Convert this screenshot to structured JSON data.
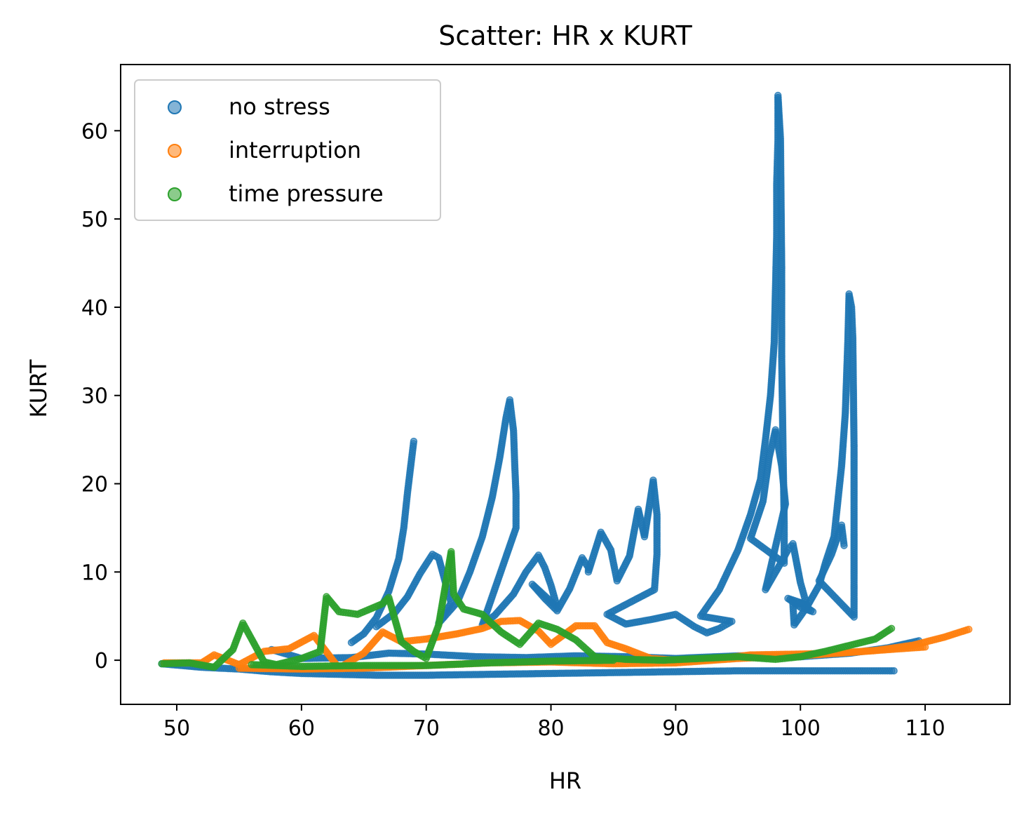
{
  "chart_data": {
    "type": "scatter",
    "title": "Scatter: HR x KURT",
    "xlabel": "HR",
    "ylabel": "KURT",
    "xlim": [
      45.5,
      116.8
    ],
    "ylim": [
      -5,
      67.5
    ],
    "xticks": [
      50,
      60,
      70,
      80,
      90,
      100,
      110
    ],
    "yticks": [
      0,
      10,
      20,
      30,
      40,
      50,
      60
    ],
    "grid": false,
    "legend_position": "upper-left",
    "series": [
      {
        "name": "no stress",
        "color": "#1f77b4",
        "points": [
          [
            48.8,
            -0.4
          ],
          [
            52,
            -0.8
          ],
          [
            55,
            -1.0
          ],
          [
            57.5,
            -1.3
          ],
          [
            60,
            -1.5
          ],
          [
            63,
            -1.6
          ],
          [
            66,
            -1.7
          ],
          [
            70,
            -1.7
          ],
          [
            75,
            -1.6
          ],
          [
            80,
            -1.5
          ],
          [
            85,
            -1.4
          ],
          [
            90,
            -1.3
          ],
          [
            95,
            -1.2
          ],
          [
            100,
            -1.2
          ],
          [
            105,
            -1.2
          ],
          [
            107.5,
            -1.2
          ],
          [
            57.6,
            1.2
          ],
          [
            60,
            0.2
          ],
          [
            64,
            0.3
          ],
          [
            67,
            0.8
          ],
          [
            70,
            0.7
          ],
          [
            74,
            0.4
          ],
          [
            78,
            0.3
          ],
          [
            82,
            0.5
          ],
          [
            86,
            0.4
          ],
          [
            90,
            0.2
          ],
          [
            95,
            0.5
          ],
          [
            100,
            0.4
          ],
          [
            104,
            0.8
          ],
          [
            107,
            1.4
          ],
          [
            109.5,
            2.2
          ],
          [
            64,
            2.0
          ],
          [
            65,
            3.0
          ],
          [
            66,
            4.8
          ],
          [
            67,
            7.8
          ],
          [
            67.8,
            11.5
          ],
          [
            68.2,
            15
          ],
          [
            68.5,
            19
          ],
          [
            68.8,
            22.5
          ],
          [
            69,
            24.8
          ],
          [
            66,
            3.8
          ],
          [
            67.5,
            5.4
          ],
          [
            68.5,
            7.2
          ],
          [
            69.5,
            9.8
          ],
          [
            70.5,
            12.0
          ],
          [
            71,
            11.6
          ],
          [
            71.5,
            9.0
          ],
          [
            72,
            6.5
          ],
          [
            71,
            4.2
          ],
          [
            72.5,
            6.6
          ],
          [
            73.5,
            10.0
          ],
          [
            74.5,
            14.0
          ],
          [
            75.3,
            18.5
          ],
          [
            75.9,
            23
          ],
          [
            76.4,
            27.5
          ],
          [
            76.7,
            29.5
          ],
          [
            77,
            26
          ],
          [
            77.1,
            22
          ],
          [
            77.2,
            18.8
          ],
          [
            77.2,
            15
          ],
          [
            74.5,
            4.0
          ],
          [
            75.5,
            5.1
          ],
          [
            77,
            7.5
          ],
          [
            78,
            10.0
          ],
          [
            79,
            11.9
          ],
          [
            79.5,
            10.5
          ],
          [
            80,
            8.5
          ],
          [
            80.5,
            6.0
          ],
          [
            78.5,
            8.6
          ],
          [
            79.5,
            7.0
          ],
          [
            80.5,
            5.6
          ],
          [
            81.5,
            8.1
          ],
          [
            82.5,
            11.6
          ],
          [
            83,
            10.5
          ],
          [
            83,
            10.0
          ],
          [
            84,
            14.5
          ],
          [
            84.8,
            12.5
          ],
          [
            85.3,
            9.0
          ],
          [
            86.3,
            11.8
          ],
          [
            87,
            17.1
          ],
          [
            87.5,
            14.0
          ],
          [
            88,
            18.5
          ],
          [
            88.2,
            20.4
          ],
          [
            88.5,
            16.5
          ],
          [
            88.5,
            12.0
          ],
          [
            88.3,
            8.0
          ],
          [
            84.5,
            5.2
          ],
          [
            86,
            4.1
          ],
          [
            88,
            4.6
          ],
          [
            90,
            5.2
          ],
          [
            91.5,
            3.8
          ],
          [
            92.5,
            3.1
          ],
          [
            93.5,
            3.6
          ],
          [
            94.5,
            4.4
          ],
          [
            92,
            5.0
          ],
          [
            93.5,
            8.0
          ],
          [
            95,
            12.5
          ],
          [
            96,
            16.5
          ],
          [
            96.8,
            20.5
          ],
          [
            97.2,
            25.0
          ],
          [
            97.6,
            30.0
          ],
          [
            97.9,
            36.0
          ],
          [
            98,
            42.0
          ],
          [
            98.1,
            48.0
          ],
          [
            98.1,
            54.0
          ],
          [
            98.2,
            59.0
          ],
          [
            98.2,
            64.0
          ],
          [
            98.4,
            59.1
          ],
          [
            98.5,
            44.4
          ],
          [
            98.5,
            34.3
          ],
          [
            98.6,
            24.5
          ],
          [
            98.7,
            15.5
          ],
          [
            98.7,
            11.0
          ],
          [
            96,
            13.8
          ],
          [
            97,
            18.0
          ],
          [
            97.5,
            23.0
          ],
          [
            98,
            26.1
          ],
          [
            98.5,
            22.0
          ],
          [
            98.8,
            17.7
          ],
          [
            97.2,
            8.0
          ],
          [
            98.3,
            10.7
          ],
          [
            99,
            12.5
          ],
          [
            99.4,
            13.2
          ],
          [
            100,
            8.8
          ],
          [
            100.5,
            6.3
          ],
          [
            99,
            7.0
          ],
          [
            100,
            6.0
          ],
          [
            101,
            5.5
          ],
          [
            100,
            6.5
          ],
          [
            99.4,
            6.3
          ],
          [
            99.5,
            4.0
          ],
          [
            100.5,
            6.0
          ],
          [
            101.5,
            8.5
          ],
          [
            102,
            11.0
          ],
          [
            102.7,
            14.0
          ],
          [
            103,
            18.0
          ],
          [
            103.3,
            22.0
          ],
          [
            103.6,
            28.0
          ],
          [
            103.8,
            36.0
          ],
          [
            103.9,
            41.5
          ],
          [
            104.1,
            40.0
          ],
          [
            104.2,
            36.5
          ],
          [
            104.3,
            24.2
          ],
          [
            104.3,
            17.2
          ],
          [
            104.3,
            9.8
          ],
          [
            104.3,
            4.9
          ],
          [
            101.5,
            9.0
          ],
          [
            102.5,
            12.0
          ],
          [
            103.3,
            15.3
          ],
          [
            103.5,
            13.0
          ]
        ]
      },
      {
        "name": "interruption",
        "color": "#ff7f0e",
        "points": [
          [
            49,
            -0.3
          ],
          [
            52,
            -0.3
          ],
          [
            53,
            0.6
          ],
          [
            55,
            -0.5
          ],
          [
            57,
            1.0
          ],
          [
            59,
            1.3
          ],
          [
            61,
            2.8
          ],
          [
            63,
            -0.9
          ],
          [
            65,
            0.8
          ],
          [
            66.5,
            3.2
          ],
          [
            68,
            2.1
          ],
          [
            70,
            2.4
          ],
          [
            72.5,
            3.0
          ],
          [
            74.5,
            3.6
          ],
          [
            76,
            4.4
          ],
          [
            77.5,
            4.5
          ],
          [
            79,
            3.3
          ],
          [
            80,
            1.8
          ],
          [
            82,
            3.9
          ],
          [
            83.5,
            3.9
          ],
          [
            84.5,
            2.0
          ],
          [
            86,
            1.3
          ],
          [
            88,
            0.2
          ],
          [
            90,
            0.0
          ],
          [
            93,
            0.1
          ],
          [
            96,
            0.6
          ],
          [
            100,
            0.7
          ],
          [
            103,
            0.8
          ],
          [
            106,
            1.1
          ],
          [
            109,
            1.7
          ],
          [
            111.5,
            2.6
          ],
          [
            113.5,
            3.5
          ],
          [
            55,
            -0.9
          ],
          [
            60,
            -1.0
          ],
          [
            65,
            -0.9
          ],
          [
            70,
            -0.6
          ],
          [
            75,
            -0.3
          ],
          [
            80,
            -0.2
          ],
          [
            85,
            -0.4
          ],
          [
            90,
            -0.3
          ],
          [
            95,
            0.2
          ],
          [
            100,
            0.5
          ],
          [
            105,
            1.0
          ],
          [
            110,
            1.5
          ]
        ]
      },
      {
        "name": "time pressure",
        "color": "#2ca02c",
        "points": [
          [
            48.8,
            -0.4
          ],
          [
            51,
            -0.3
          ],
          [
            53,
            -0.8
          ],
          [
            54.5,
            1.2
          ],
          [
            55.3,
            4.2
          ],
          [
            56,
            2.4
          ],
          [
            57,
            -0.2
          ],
          [
            58,
            -0.5
          ],
          [
            60,
            0.2
          ],
          [
            61.5,
            1.0
          ],
          [
            62,
            7.2
          ],
          [
            63,
            5.5
          ],
          [
            64.5,
            5.2
          ],
          [
            65.5,
            5.8
          ],
          [
            66.5,
            6.4
          ],
          [
            67,
            7.1
          ],
          [
            68,
            2.1
          ],
          [
            69,
            1.0
          ],
          [
            70,
            0.2
          ],
          [
            71,
            4.0
          ],
          [
            72,
            12.3
          ],
          [
            72.2,
            7.5
          ],
          [
            73,
            5.8
          ],
          [
            74.5,
            5.2
          ],
          [
            75,
            4.5
          ],
          [
            76,
            3.2
          ],
          [
            77.5,
            1.8
          ],
          [
            79,
            4.2
          ],
          [
            80.5,
            3.5
          ],
          [
            82,
            2.3
          ],
          [
            83.5,
            0.4
          ],
          [
            86,
            0.1
          ],
          [
            89,
            0.0
          ],
          [
            92,
            0.2
          ],
          [
            95,
            0.4
          ],
          [
            98,
            0.1
          ],
          [
            100,
            0.4
          ],
          [
            102,
            1.0
          ],
          [
            104,
            1.7
          ],
          [
            106,
            2.4
          ],
          [
            107.3,
            3.6
          ],
          [
            56,
            -0.5
          ],
          [
            60,
            -0.7
          ],
          [
            65,
            -0.6
          ],
          [
            70,
            -0.6
          ],
          [
            75,
            -0.3
          ],
          [
            80,
            -0.1
          ],
          [
            85,
            0.0
          ]
        ]
      }
    ]
  }
}
